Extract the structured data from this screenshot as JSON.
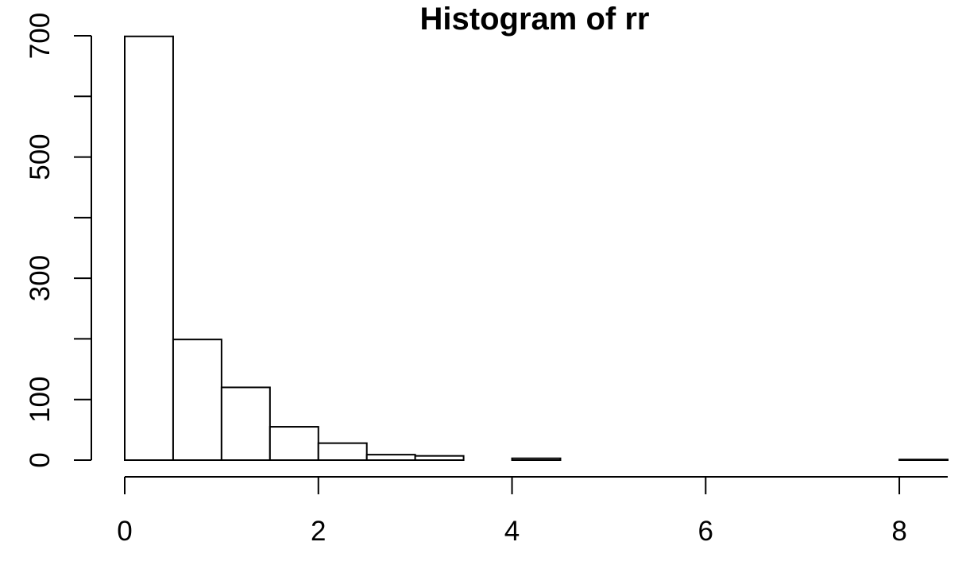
{
  "chart_data": {
    "type": "bar",
    "title": "Histogram of rr",
    "xlabel": "",
    "ylabel": "",
    "bin_edges": [
      0,
      0.5,
      1,
      1.5,
      2,
      2.5,
      3,
      3.5,
      4,
      4.5,
      5,
      5.5,
      6,
      6.5,
      7,
      7.5,
      8,
      8.5
    ],
    "values": [
      699,
      199,
      120,
      55,
      28,
      9,
      7,
      0,
      3,
      0,
      0,
      0,
      0,
      0,
      0,
      0,
      1
    ],
    "xlim": [
      0,
      8.5
    ],
    "ylim": [
      0,
      700
    ],
    "x_ticks": [
      0,
      2,
      4,
      6,
      8
    ],
    "y_ticks": [
      0,
      100,
      200,
      300,
      400,
      500,
      600,
      700
    ],
    "y_tick_labels": [
      0,
      100,
      300,
      500,
      700
    ],
    "colors": {
      "bar_fill": "#ffffff",
      "bar_stroke": "#000000",
      "axis": "#000000"
    },
    "grid": false
  }
}
